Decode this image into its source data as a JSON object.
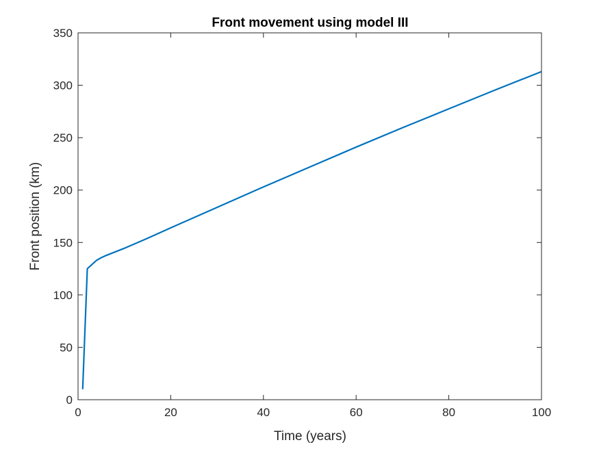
{
  "chart_data": {
    "type": "line",
    "title": "Front movement using model III",
    "xlabel": "Time (years)",
    "ylabel": "Front position (km)",
    "xlim": [
      0,
      100
    ],
    "ylim": [
      0,
      350
    ],
    "xticks": [
      0,
      20,
      40,
      60,
      80,
      100
    ],
    "yticks": [
      0,
      50,
      100,
      150,
      200,
      250,
      300,
      350
    ],
    "grid": false,
    "series": [
      {
        "color": "#0072BD",
        "x": [
          1,
          2,
          3,
          4,
          5,
          6,
          8,
          10,
          15,
          20,
          30,
          40,
          50,
          60,
          70,
          80,
          90,
          100
        ],
        "y": [
          10,
          125,
          129,
          133,
          135.5,
          137.5,
          141,
          144.5,
          154,
          164,
          183.5,
          203,
          222,
          241,
          259.5,
          277.5,
          295.5,
          313
        ]
      }
    ]
  }
}
